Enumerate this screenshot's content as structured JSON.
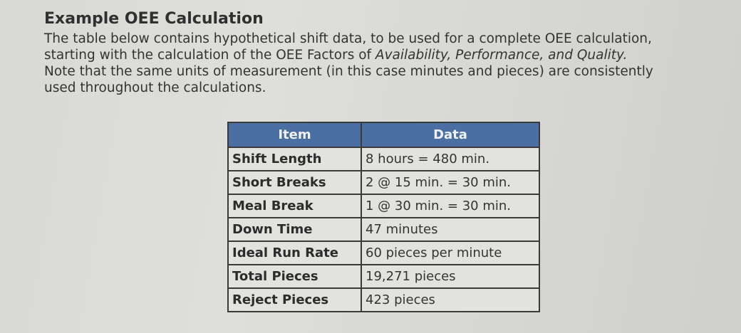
{
  "heading": "Example OEE Calculation",
  "intro": {
    "line1": "The table below contains hypothetical shift data, to be used for a complete OEE calculation,",
    "line2_pre": "starting with the calculation of the OEE Factors of ",
    "line2_italic": "Availability, Performance, and Quality.",
    "line3": "Note that the same units of measurement (in this case minutes and pieces) are consistently",
    "line4": "used throughout the calculations."
  },
  "table": {
    "header": {
      "item": "Item",
      "data": "Data"
    },
    "header_color": "#4b6fa2",
    "rows": [
      {
        "item": "Shift Length",
        "data": "8 hours = 480 min."
      },
      {
        "item": "Short Breaks",
        "data": "2 @ 15 min. = 30 min."
      },
      {
        "item": "Meal Break",
        "data": "1 @ 30 min. = 30 min."
      },
      {
        "item": "Down Time",
        "data": "47 minutes"
      },
      {
        "item": "Ideal Run Rate",
        "data": "60 pieces per minute"
      },
      {
        "item": "Total Pieces",
        "data": "19,271 pieces"
      },
      {
        "item": "Reject Pieces",
        "data": "423 pieces"
      }
    ]
  }
}
